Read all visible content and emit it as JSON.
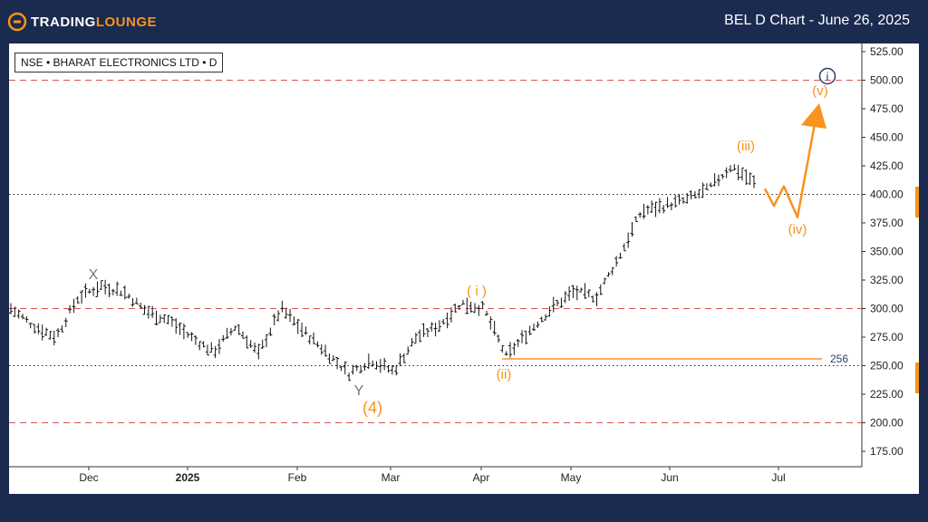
{
  "header": {
    "logo_trading": "TRADING",
    "logo_lounge": "LOUNGE",
    "title": "BEL D Chart - June 26, 2025"
  },
  "symbol_label": "NSE • BHARAT ELECTRONICS LTD • D",
  "colors": {
    "frame": "#1b2a4f",
    "accent": "#f7931e",
    "resistance": "#d9534f",
    "blue_label": "#2c3e70"
  },
  "chart_data": {
    "type": "bar",
    "title": "BEL D Chart - June 26, 2025",
    "ylim": [
      160,
      530
    ],
    "y_ticks": [
      "525.00",
      "500.00",
      "475.00",
      "450.00",
      "425.00",
      "400.00",
      "375.00",
      "350.00",
      "325.00",
      "300.00",
      "275.00",
      "250.00",
      "225.00",
      "200.00",
      "175.00"
    ],
    "x_ticks": [
      "Dec",
      "2025",
      "Feb",
      "Mar",
      "Apr",
      "May",
      "Jun",
      "Jul"
    ],
    "red_dashed_levels": [
      500,
      300,
      200
    ],
    "black_dotted_levels": [
      400,
      250
    ],
    "support_level": {
      "value": 256,
      "label": "256"
    },
    "wave_labels": [
      {
        "text": "X",
        "color": "grey"
      },
      {
        "text": "Y",
        "color": "grey"
      },
      {
        "text": "(4)",
        "color": "orange"
      },
      {
        "text": "( i )",
        "color": "orange"
      },
      {
        "text": "(ii)",
        "color": "orange"
      },
      {
        "text": "(iii)",
        "color": "orange"
      },
      {
        "text": "(iv)",
        "color": "orange"
      },
      {
        "text": "(v)",
        "color": "orange"
      },
      {
        "text": "i",
        "color": "blue"
      }
    ],
    "price_path": [
      {
        "date": "Nov",
        "value": 300
      },
      {
        "date": "Nov",
        "value": 285
      },
      {
        "date": "Nov",
        "value": 275
      },
      {
        "date": "Dec",
        "value": 310
      },
      {
        "date": "Dec",
        "value": 320
      },
      {
        "date": "Dec",
        "value": 315
      },
      {
        "date": "Dec",
        "value": 298
      },
      {
        "date": "Jan",
        "value": 290
      },
      {
        "date": "Jan",
        "value": 275
      },
      {
        "date": "Jan",
        "value": 262
      },
      {
        "date": "Jan",
        "value": 285
      },
      {
        "date": "Feb",
        "value": 260
      },
      {
        "date": "Feb",
        "value": 300
      },
      {
        "date": "Feb",
        "value": 280
      },
      {
        "date": "Feb",
        "value": 262
      },
      {
        "date": "Mar",
        "value": 243
      },
      {
        "date": "Mar",
        "value": 255
      },
      {
        "date": "Mar",
        "value": 245
      },
      {
        "date": "Mar",
        "value": 275
      },
      {
        "date": "Mar",
        "value": 285
      },
      {
        "date": "Apr",
        "value": 305
      },
      {
        "date": "Apr",
        "value": 300
      },
      {
        "date": "Apr",
        "value": 258
      },
      {
        "date": "Apr",
        "value": 280
      },
      {
        "date": "May",
        "value": 300
      },
      {
        "date": "May",
        "value": 315
      },
      {
        "date": "May",
        "value": 310
      },
      {
        "date": "May",
        "value": 345
      },
      {
        "date": "Jun",
        "value": 385
      },
      {
        "date": "Jun",
        "value": 390
      },
      {
        "date": "Jun",
        "value": 395
      },
      {
        "date": "Jun",
        "value": 405
      },
      {
        "date": "Jun",
        "value": 425
      },
      {
        "date": "Jun",
        "value": 410
      }
    ],
    "projection": [
      {
        "value": 405
      },
      {
        "value": 390
      },
      {
        "value": 407
      },
      {
        "value": 380
      },
      {
        "value": 475
      }
    ]
  }
}
